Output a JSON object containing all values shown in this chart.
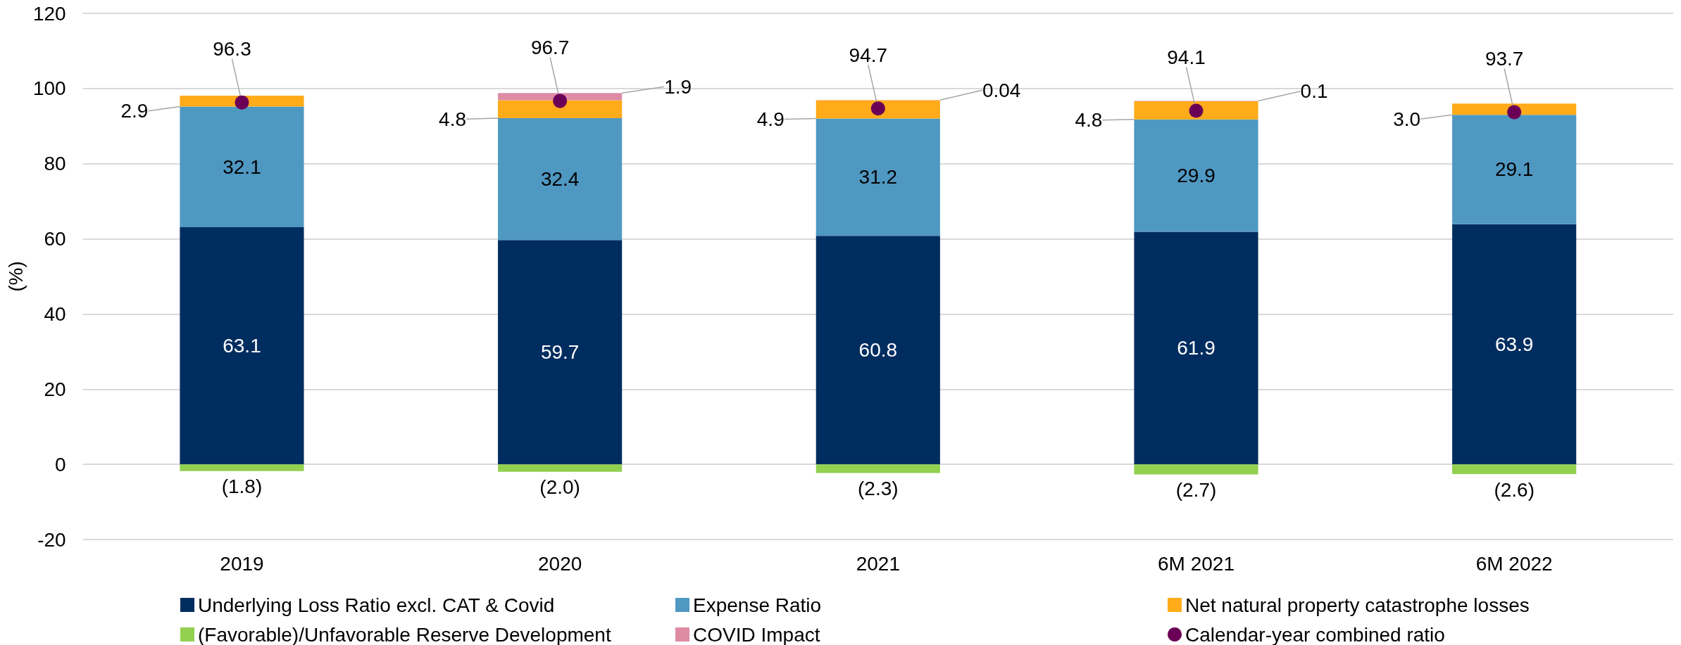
{
  "chart_data": {
    "type": "bar",
    "stacked": true,
    "ylabel": "(%)",
    "categories": [
      "2019",
      "2020",
      "2021",
      "6M 2021",
      "6M 2022"
    ],
    "series": [
      {
        "name": "Underlying Loss Ratio excl. CAT & Covid",
        "color": "#002d5f",
        "values": [
          63.1,
          59.7,
          60.8,
          61.9,
          63.9
        ],
        "value_labels": [
          "63.1",
          "59.7",
          "60.8",
          "61.9",
          "63.9"
        ]
      },
      {
        "name": "Expense Ratio",
        "color": "#4f98c2",
        "values": [
          32.1,
          32.4,
          31.2,
          29.9,
          29.1
        ],
        "value_labels": [
          "32.1",
          "32.4",
          "31.2",
          "29.9",
          "29.1"
        ]
      },
      {
        "name": "Net natural property catastrophe losses",
        "color": "#ffab1a",
        "values": [
          2.9,
          4.8,
          4.9,
          4.8,
          3.0
        ],
        "value_labels": [
          "2.9",
          "4.8",
          "4.9",
          "4.8",
          "3.0"
        ]
      },
      {
        "name": "(Favorable)/Unfavorable Reserve Development",
        "color": "#92d050",
        "values": [
          -1.8,
          -2.0,
          -2.3,
          -2.7,
          -2.6
        ],
        "value_labels": [
          "(1.8)",
          "(2.0)",
          "(2.3)",
          "(2.7)",
          "(2.6)"
        ]
      },
      {
        "name": "COVID Impact",
        "color": "#de8ba4",
        "values": [
          null,
          1.9,
          0.04,
          0.1,
          null
        ],
        "value_labels": [
          null,
          "1.9",
          "0.04",
          "0.1",
          null
        ]
      },
      {
        "name": "Calendar-year combined ratio",
        "type": "scatter",
        "color": "#6b0057",
        "values": [
          96.3,
          96.7,
          94.7,
          94.1,
          93.7
        ],
        "value_labels": [
          "96.3",
          "96.7",
          "94.7",
          "94.1",
          "93.7"
        ]
      }
    ],
    "ylim": [
      -20,
      120
    ],
    "yticks": [
      -20,
      0,
      20,
      40,
      60,
      80,
      100,
      120
    ],
    "grid": "y",
    "legend": "bottom",
    "marker": "circle"
  }
}
